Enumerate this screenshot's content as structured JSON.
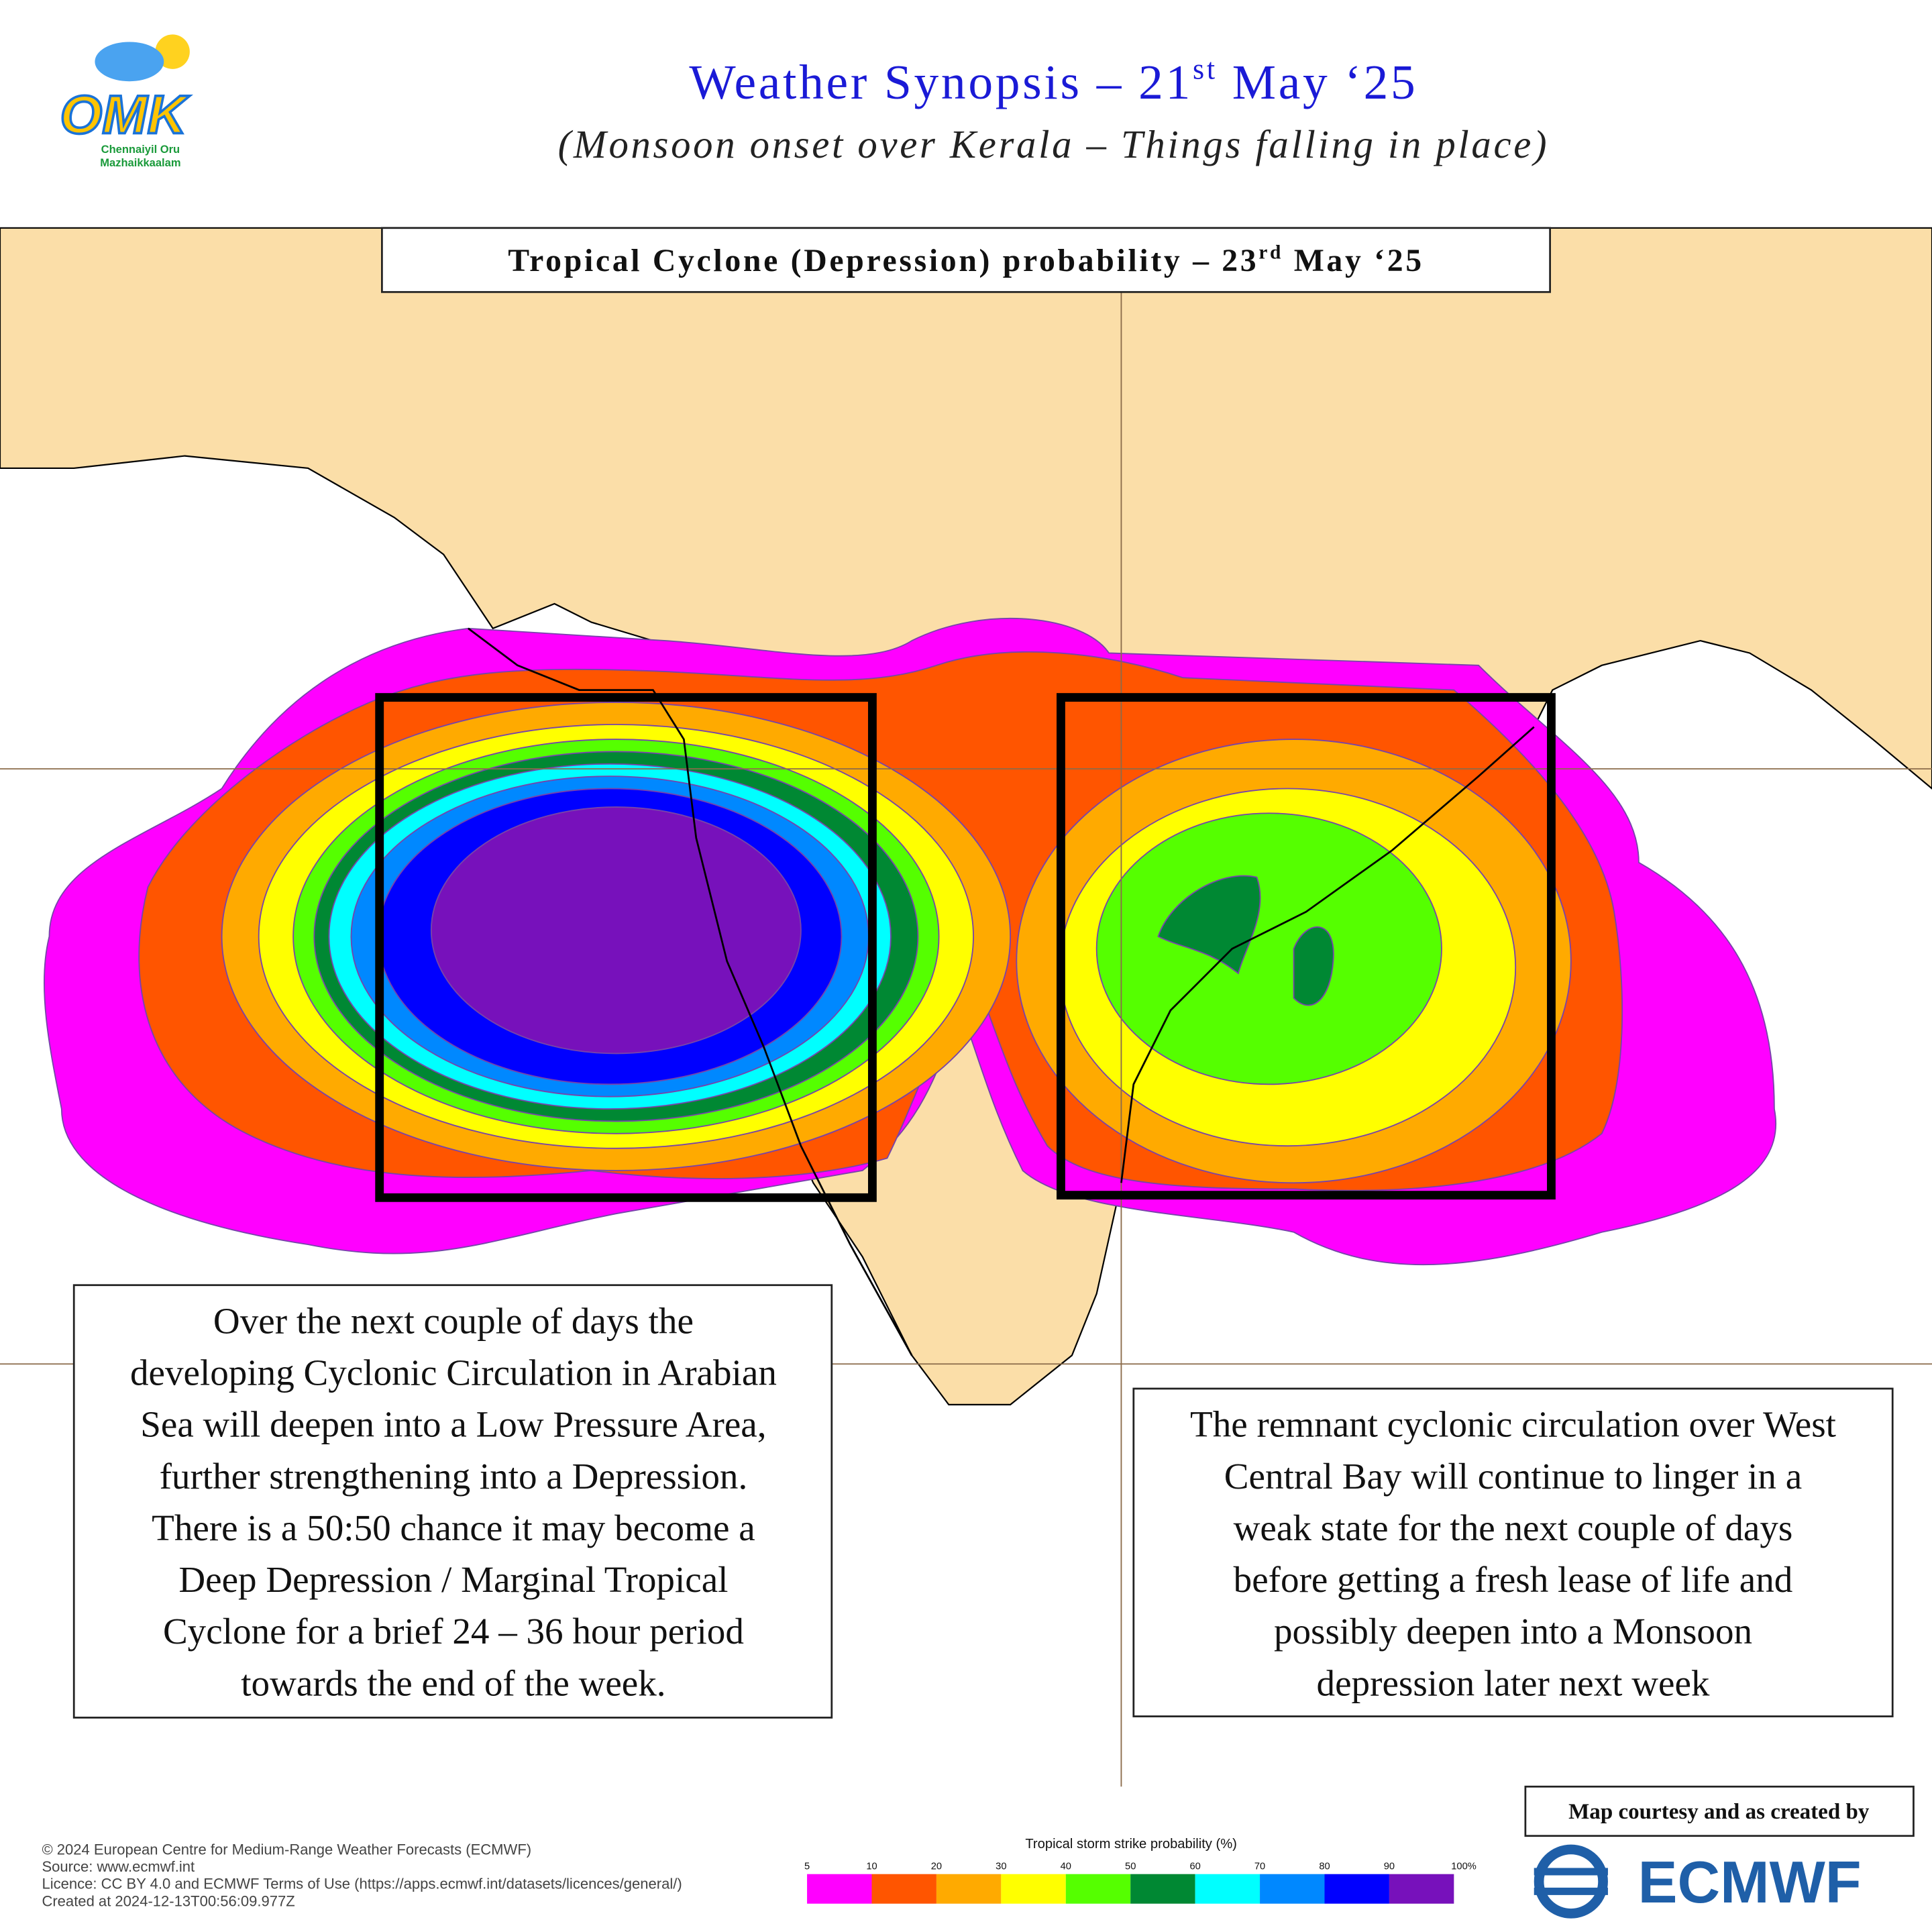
{
  "header": {
    "title": {
      "main": "Weather Synopsis – 21",
      "sup": "st",
      "end": " May ‘25"
    },
    "subtitle": "(Monsoon onset over Kerala – Things falling in place)"
  },
  "logo": {
    "mark": "OMK",
    "line1": "Chennaiyil Oru",
    "line2": "Mazhaikkaalam"
  },
  "map_label": {
    "main": "Tropical Cyclone (Depression) probability – 23",
    "sup": "rd",
    "end": " May ‘25"
  },
  "left_note": [
    "Over the next couple of days the",
    "developing Cyclonic Circulation in Arabian",
    "Sea will deepen into a Low Pressure Area,",
    "further strengthening into a Depression.",
    "There is a 50:50 chance it may become a",
    "Deep Depression / Marginal Tropical",
    "Cyclone for a brief 24 – 36 hour period",
    "towards the end of the week."
  ],
  "right_note": [
    "The remnant cyclonic circulation over West",
    "Central Bay will continue to linger in a",
    "weak state for the next couple of days",
    "before getting a fresh lease of life and",
    "possibly deepen into a Monsoon",
    "depression later next week"
  ],
  "legend": {
    "title": "Tropical storm strike probability (%)",
    "ticks": [
      5,
      10,
      20,
      30,
      40,
      50,
      60,
      70,
      80,
      90,
      {
        "value": 100,
        "label": "100%"
      }
    ],
    "colors": [
      "#ff00ff",
      "#ff5500",
      "#ffaa00",
      "#ffff00",
      "#55ff00",
      "#008833",
      "#00ffff",
      "#0088ff",
      "#0000ff",
      "#7711bb"
    ]
  },
  "footer": [
    "© 2024 European Centre for Medium-Range Weather Forecasts (ECMWF)",
    "Source: www.ecmwf.int",
    "Licence: CC BY 4.0 and ECMWF Terms of Use (https://apps.ecmwf.int/datasets/licences/general/)",
    "Created at 2024-12-13T00:56:09.977Z"
  ],
  "credit": {
    "text": "Map courtesy and  as created by",
    "brand": "ECMWF"
  }
}
